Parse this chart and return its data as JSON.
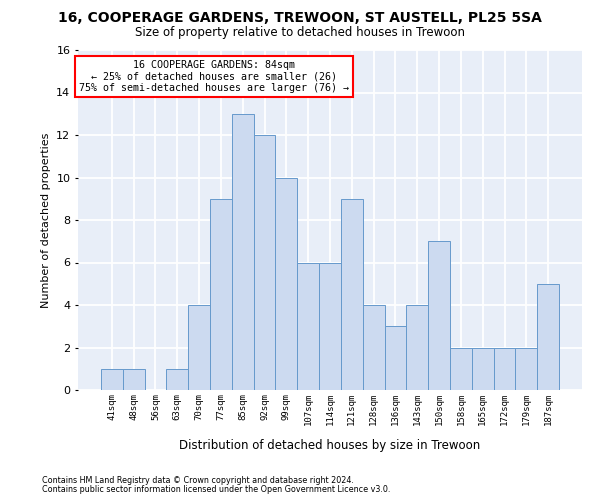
{
  "title1": "16, COOPERAGE GARDENS, TREWOON, ST AUSTELL, PL25 5SA",
  "title2": "Size of property relative to detached houses in Trewoon",
  "xlabel": "Distribution of detached houses by size in Trewoon",
  "ylabel": "Number of detached properties",
  "bins": [
    "41sqm",
    "48sqm",
    "56sqm",
    "63sqm",
    "70sqm",
    "77sqm",
    "85sqm",
    "92sqm",
    "99sqm",
    "107sqm",
    "114sqm",
    "121sqm",
    "128sqm",
    "136sqm",
    "143sqm",
    "150sqm",
    "158sqm",
    "165sqm",
    "172sqm",
    "179sqm",
    "187sqm"
  ],
  "values": [
    1,
    1,
    0,
    1,
    4,
    9,
    13,
    12,
    10,
    6,
    6,
    9,
    4,
    3,
    4,
    7,
    2,
    2,
    2,
    2,
    5
  ],
  "bar_color": "#ccdaf0",
  "bar_edge_color": "#6699cc",
  "annotation_line1": "16 COOPERAGE GARDENS: 84sqm",
  "annotation_line2": "← 25% of detached houses are smaller (26)",
  "annotation_line3": "75% of semi-detached houses are larger (76) →",
  "ylim": [
    0,
    16
  ],
  "yticks": [
    0,
    2,
    4,
    6,
    8,
    10,
    12,
    14,
    16
  ],
  "footer1": "Contains HM Land Registry data © Crown copyright and database right 2024.",
  "footer2": "Contains public sector information licensed under the Open Government Licence v3.0.",
  "plot_bg_color": "#e8eef8",
  "grid_color": "#ffffff",
  "fig_bg_color": "#ffffff"
}
